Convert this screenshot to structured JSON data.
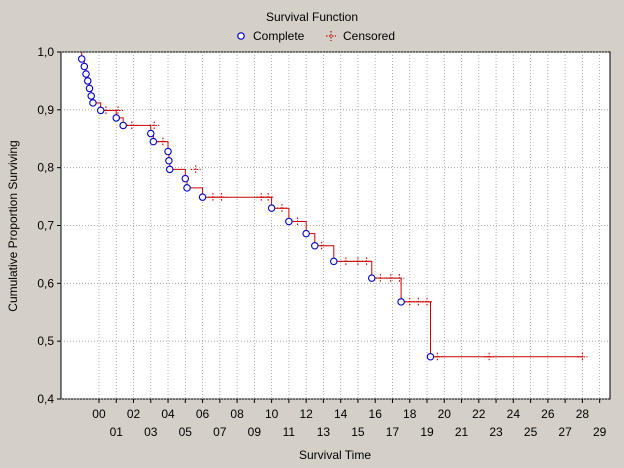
{
  "chart_data": {
    "type": "line",
    "title": "Survival Function",
    "xlabel": "Survival Time",
    "ylabel": "Cumulative Proportion Surviving",
    "legend": {
      "placement": "top-center",
      "entries": [
        {
          "label": "Complete",
          "marker": "circle",
          "color": "#0000cc"
        },
        {
          "label": "Censored",
          "marker": "dotted-cross",
          "color": "#cc0000"
        }
      ]
    },
    "grid": true,
    "ylim": [
      0.4,
      1.0
    ],
    "xlim": [
      -2.2,
      29.6
    ],
    "y_tick_labels": [
      {
        "v": 1.0,
        "label": "1,0"
      },
      {
        "v": 0.9,
        "label": "0,9"
      },
      {
        "v": 0.8,
        "label": "0,8"
      },
      {
        "v": 0.7,
        "label": "0,7"
      },
      {
        "v": 0.6,
        "label": "0,6"
      },
      {
        "v": 0.5,
        "label": "0,5"
      },
      {
        "v": 0.4,
        "label": "0,4"
      }
    ],
    "x_tick_labels_upper": [
      {
        "v": 0,
        "label": "00"
      },
      {
        "v": 2,
        "label": "02"
      },
      {
        "v": 4,
        "label": "04"
      },
      {
        "v": 6,
        "label": "06"
      },
      {
        "v": 8,
        "label": "08"
      },
      {
        "v": 10,
        "label": "10"
      },
      {
        "v": 12,
        "label": "12"
      },
      {
        "v": 14,
        "label": "14"
      },
      {
        "v": 16,
        "label": "16"
      },
      {
        "v": 18,
        "label": "18"
      },
      {
        "v": 20,
        "label": "20"
      },
      {
        "v": 22,
        "label": "22"
      },
      {
        "v": 24,
        "label": "24"
      },
      {
        "v": 26,
        "label": "26"
      },
      {
        "v": 28,
        "label": "28"
      }
    ],
    "x_tick_labels_lower": [
      {
        "v": 1,
        "label": "01"
      },
      {
        "v": 3,
        "label": "03"
      },
      {
        "v": 5,
        "label": "05"
      },
      {
        "v": 7,
        "label": "07"
      },
      {
        "v": 9,
        "label": "09"
      },
      {
        "v": 11,
        "label": "11"
      },
      {
        "v": 13,
        "label": "13"
      },
      {
        "v": 15,
        "label": "15"
      },
      {
        "v": 17,
        "label": "17"
      },
      {
        "v": 19,
        "label": "19"
      },
      {
        "v": 21,
        "label": "21"
      },
      {
        "v": 23,
        "label": "23"
      },
      {
        "v": 25,
        "label": "25"
      },
      {
        "v": 27,
        "label": "27"
      },
      {
        "v": 29,
        "label": "29"
      }
    ],
    "step_curve": {
      "color": "#cc0000",
      "points": [
        {
          "x": -1.0,
          "y": 1.0
        },
        {
          "x": -1.0,
          "y": 0.988
        },
        {
          "x": -0.85,
          "y": 0.988
        },
        {
          "x": -0.85,
          "y": 0.975
        },
        {
          "x": -0.75,
          "y": 0.975
        },
        {
          "x": -0.75,
          "y": 0.962
        },
        {
          "x": -0.65,
          "y": 0.962
        },
        {
          "x": -0.65,
          "y": 0.95
        },
        {
          "x": -0.55,
          "y": 0.95
        },
        {
          "x": -0.55,
          "y": 0.937
        },
        {
          "x": -0.45,
          "y": 0.937
        },
        {
          "x": -0.45,
          "y": 0.924
        },
        {
          "x": -0.35,
          "y": 0.924
        },
        {
          "x": -0.35,
          "y": 0.912
        },
        {
          "x": 0.1,
          "y": 0.912
        },
        {
          "x": 0.1,
          "y": 0.899
        },
        {
          "x": 1.0,
          "y": 0.899
        },
        {
          "x": 1.0,
          "y": 0.886
        },
        {
          "x": 1.4,
          "y": 0.886
        },
        {
          "x": 1.4,
          "y": 0.873
        },
        {
          "x": 3.0,
          "y": 0.873
        },
        {
          "x": 3.0,
          "y": 0.859
        },
        {
          "x": 3.15,
          "y": 0.859
        },
        {
          "x": 3.15,
          "y": 0.845
        },
        {
          "x": 4.0,
          "y": 0.845
        },
        {
          "x": 4.0,
          "y": 0.828
        },
        {
          "x": 4.05,
          "y": 0.828
        },
        {
          "x": 4.05,
          "y": 0.812
        },
        {
          "x": 4.1,
          "y": 0.812
        },
        {
          "x": 4.1,
          "y": 0.797
        },
        {
          "x": 5.0,
          "y": 0.797
        },
        {
          "x": 5.0,
          "y": 0.781
        },
        {
          "x": 5.1,
          "y": 0.781
        },
        {
          "x": 5.1,
          "y": 0.765
        },
        {
          "x": 6.0,
          "y": 0.765
        },
        {
          "x": 6.0,
          "y": 0.749
        },
        {
          "x": 10.0,
          "y": 0.749
        },
        {
          "x": 10.0,
          "y": 0.73
        },
        {
          "x": 11.0,
          "y": 0.73
        },
        {
          "x": 11.0,
          "y": 0.707
        },
        {
          "x": 12.0,
          "y": 0.707
        },
        {
          "x": 12.0,
          "y": 0.686
        },
        {
          "x": 12.5,
          "y": 0.686
        },
        {
          "x": 12.5,
          "y": 0.665
        },
        {
          "x": 13.6,
          "y": 0.665
        },
        {
          "x": 13.6,
          "y": 0.638
        },
        {
          "x": 15.8,
          "y": 0.638
        },
        {
          "x": 15.8,
          "y": 0.609
        },
        {
          "x": 17.5,
          "y": 0.609
        },
        {
          "x": 17.5,
          "y": 0.568
        },
        {
          "x": 19.2,
          "y": 0.568
        },
        {
          "x": 19.2,
          "y": 0.473
        },
        {
          "x": 28.0,
          "y": 0.473
        }
      ]
    },
    "complete_points": [
      {
        "x": -1.0,
        "y": 0.988
      },
      {
        "x": -0.85,
        "y": 0.975
      },
      {
        "x": -0.75,
        "y": 0.962
      },
      {
        "x": -0.65,
        "y": 0.95
      },
      {
        "x": -0.55,
        "y": 0.937
      },
      {
        "x": -0.45,
        "y": 0.924
      },
      {
        "x": -0.35,
        "y": 0.912
      },
      {
        "x": 0.1,
        "y": 0.899
      },
      {
        "x": 1.0,
        "y": 0.886
      },
      {
        "x": 1.4,
        "y": 0.873
      },
      {
        "x": 3.0,
        "y": 0.859
      },
      {
        "x": 3.15,
        "y": 0.845
      },
      {
        "x": 4.0,
        "y": 0.828
      },
      {
        "x": 4.05,
        "y": 0.812
      },
      {
        "x": 4.1,
        "y": 0.797
      },
      {
        "x": 5.0,
        "y": 0.781
      },
      {
        "x": 5.1,
        "y": 0.765
      },
      {
        "x": 6.0,
        "y": 0.749
      },
      {
        "x": 10.0,
        "y": 0.73
      },
      {
        "x": 11.0,
        "y": 0.707
      },
      {
        "x": 12.0,
        "y": 0.686
      },
      {
        "x": 12.5,
        "y": 0.665
      },
      {
        "x": 13.6,
        "y": 0.638
      },
      {
        "x": 15.8,
        "y": 0.609
      },
      {
        "x": 17.5,
        "y": 0.568
      },
      {
        "x": 19.2,
        "y": 0.473
      }
    ],
    "censored_points": [
      {
        "x": 0.4,
        "y": 0.899
      },
      {
        "x": 1.1,
        "y": 0.899
      },
      {
        "x": 1.9,
        "y": 0.873
      },
      {
        "x": 3.2,
        "y": 0.873
      },
      {
        "x": 3.7,
        "y": 0.845
      },
      {
        "x": 5.6,
        "y": 0.797
      },
      {
        "x": 6.6,
        "y": 0.749
      },
      {
        "x": 7.1,
        "y": 0.749
      },
      {
        "x": 9.4,
        "y": 0.749
      },
      {
        "x": 9.8,
        "y": 0.749
      },
      {
        "x": 10.6,
        "y": 0.73
      },
      {
        "x": 11.5,
        "y": 0.707
      },
      {
        "x": 12.9,
        "y": 0.665
      },
      {
        "x": 14.3,
        "y": 0.638
      },
      {
        "x": 15.0,
        "y": 0.638
      },
      {
        "x": 15.5,
        "y": 0.638
      },
      {
        "x": 16.3,
        "y": 0.609
      },
      {
        "x": 16.9,
        "y": 0.609
      },
      {
        "x": 17.4,
        "y": 0.609
      },
      {
        "x": 18.0,
        "y": 0.568
      },
      {
        "x": 18.5,
        "y": 0.568
      },
      {
        "x": 19.0,
        "y": 0.568
      },
      {
        "x": 19.6,
        "y": 0.473
      },
      {
        "x": 22.6,
        "y": 0.473
      },
      {
        "x": 28.0,
        "y": 0.473
      }
    ]
  }
}
